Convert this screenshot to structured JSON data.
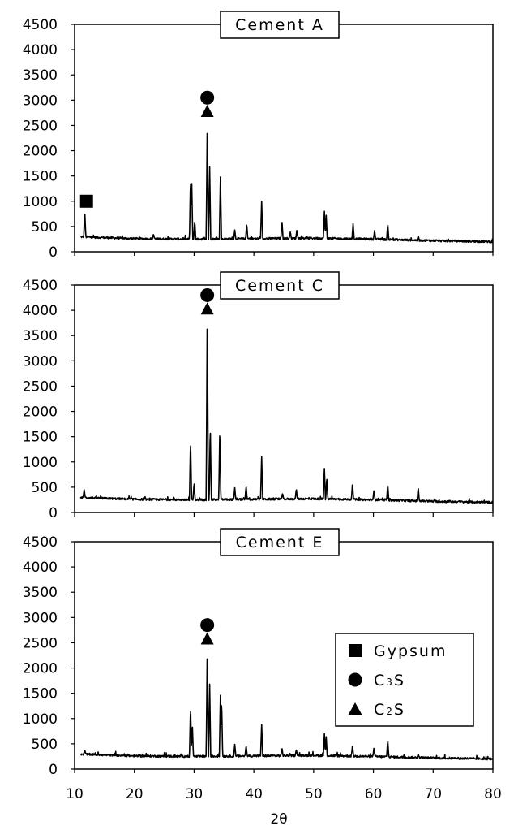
{
  "chart_data": {
    "type": "line",
    "xlabel": "2θ",
    "xlim": [
      10,
      80
    ],
    "x_ticks": [
      10,
      20,
      30,
      40,
      50,
      60,
      70,
      80
    ],
    "ylim": [
      0,
      4500
    ],
    "y_ticks": [
      0,
      500,
      1000,
      1500,
      2000,
      2500,
      3000,
      3500,
      4000,
      4500
    ],
    "baseline": [
      [
        10,
        300
      ],
      [
        20,
        260
      ],
      [
        30,
        250
      ],
      [
        40,
        260
      ],
      [
        50,
        270
      ],
      [
        60,
        250
      ],
      [
        70,
        220
      ],
      [
        80,
        200
      ]
    ],
    "legend": {
      "placement": "bottom-right of Cement E panel",
      "items": [
        {
          "marker": "square",
          "label": "Gypsum"
        },
        {
          "marker": "circle",
          "label": "C",
          "sub": "3",
          "tail": "S"
        },
        {
          "marker": "triangle",
          "label": "C",
          "sub": "2",
          "tail": "S"
        }
      ]
    },
    "panels": [
      {
        "title": "Cement A",
        "peaks": [
          [
            11.7,
            800
          ],
          [
            23.2,
            350
          ],
          [
            29.4,
            1480
          ],
          [
            29.6,
            1350
          ],
          [
            30.1,
            620
          ],
          [
            32.2,
            2600
          ],
          [
            32.6,
            1680
          ],
          [
            34.4,
            1480
          ],
          [
            36.8,
            430
          ],
          [
            38.8,
            560
          ],
          [
            41.3,
            1000
          ],
          [
            44.7,
            620
          ],
          [
            46.1,
            390
          ],
          [
            47.2,
            440
          ],
          [
            51.8,
            800
          ],
          [
            52.1,
            720
          ],
          [
            56.6,
            560
          ],
          [
            60.2,
            420
          ],
          [
            62.4,
            560
          ],
          [
            67.5,
            320
          ]
        ],
        "markers": [
          {
            "shape": "square",
            "x": 12.0,
            "y": 1000
          },
          {
            "shape": "circle",
            "x": 32.2,
            "y": 3050
          },
          {
            "shape": "triangle",
            "x": 32.2,
            "y": 2780
          }
        ]
      },
      {
        "title": "Cement C",
        "peaks": [
          [
            11.6,
            450
          ],
          [
            29.4,
            1450
          ],
          [
            30.0,
            600
          ],
          [
            32.2,
            4050
          ],
          [
            32.7,
            1730
          ],
          [
            34.3,
            1670
          ],
          [
            36.8,
            490
          ],
          [
            38.7,
            530
          ],
          [
            41.3,
            1100
          ],
          [
            44.8,
            380
          ],
          [
            47.1,
            470
          ],
          [
            51.8,
            870
          ],
          [
            52.2,
            700
          ],
          [
            56.5,
            580
          ],
          [
            60.1,
            450
          ],
          [
            62.4,
            560
          ],
          [
            67.5,
            500
          ]
        ],
        "markers": [
          {
            "shape": "circle",
            "x": 32.2,
            "y": 4300
          },
          {
            "shape": "triangle",
            "x": 32.2,
            "y": 4030
          }
        ]
      },
      {
        "title": "Cement E",
        "peaks": [
          [
            11.7,
            380
          ],
          [
            29.4,
            1250
          ],
          [
            29.7,
            900
          ],
          [
            32.2,
            2420
          ],
          [
            32.6,
            1680
          ],
          [
            34.4,
            1460
          ],
          [
            34.6,
            1380
          ],
          [
            36.8,
            490
          ],
          [
            38.7,
            470
          ],
          [
            41.3,
            880
          ],
          [
            44.7,
            420
          ],
          [
            47.1,
            390
          ],
          [
            51.8,
            700
          ],
          [
            52.1,
            640
          ],
          [
            56.5,
            470
          ],
          [
            60.1,
            430
          ],
          [
            62.4,
            580
          ],
          [
            67.5,
            300
          ]
        ],
        "markers": [
          {
            "shape": "circle",
            "x": 32.2,
            "y": 2850
          },
          {
            "shape": "triangle",
            "x": 32.2,
            "y": 2580
          }
        ]
      }
    ]
  }
}
